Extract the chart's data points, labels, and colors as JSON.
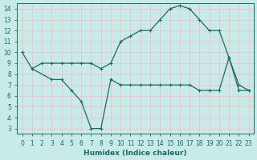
{
  "line1_x": [
    0,
    1,
    2,
    3,
    4,
    5,
    6,
    7,
    8,
    9,
    10,
    11,
    12,
    13,
    14,
    15,
    16,
    17,
    18,
    19,
    20,
    21,
    22,
    23
  ],
  "line1_y": [
    10.0,
    8.5,
    9.0,
    9.0,
    9.0,
    9.0,
    9.0,
    9.0,
    8.5,
    9.0,
    11.0,
    11.5,
    12.0,
    12.0,
    13.0,
    14.0,
    14.3,
    14.0,
    13.0,
    12.0,
    12.0,
    9.5,
    7.0,
    6.5
  ],
  "line2_x": [
    1,
    3,
    4,
    5,
    6,
    7,
    8,
    9,
    10,
    11,
    12,
    13,
    14,
    15,
    16,
    17,
    18,
    19,
    20,
    21,
    22,
    23
  ],
  "line2_y": [
    8.5,
    7.5,
    7.5,
    6.5,
    5.5,
    3.0,
    3.0,
    7.5,
    7.0,
    7.0,
    7.0,
    7.0,
    7.0,
    7.0,
    7.0,
    7.0,
    6.5,
    6.5,
    6.5,
    9.5,
    6.5,
    6.5
  ],
  "line_color": "#1a6b5e",
  "bg_color": "#c8eae8",
  "grid_color": "#f5bfbf",
  "xlabel": "Humidex (Indice chaleur)",
  "xlim": [
    -0.5,
    23.5
  ],
  "ylim": [
    2.5,
    14.5
  ],
  "xticks": [
    0,
    1,
    2,
    3,
    4,
    5,
    6,
    7,
    8,
    9,
    10,
    11,
    12,
    13,
    14,
    15,
    16,
    17,
    18,
    19,
    20,
    21,
    22,
    23
  ],
  "yticks": [
    3,
    4,
    5,
    6,
    7,
    8,
    9,
    10,
    11,
    12,
    13,
    14
  ],
  "label_fontsize": 6.5,
  "tick_fontsize": 5.5
}
